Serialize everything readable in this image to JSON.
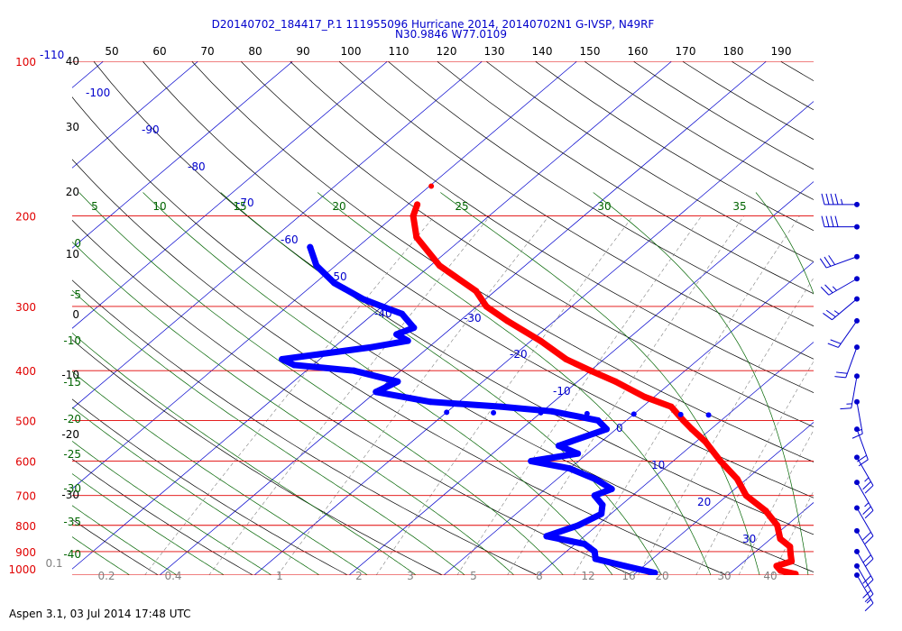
{
  "header": {
    "line1": "D20140702_184417_P.1 111955096 Hurricane 2014, 20140702N1 G-IVSP, N49RF",
    "line2": "N30.9846 W77.0109"
  },
  "footer": "Aspen 3.1, 03 Jul 2014  17:48 UTC",
  "colors": {
    "isobar": "#e00000",
    "pressure_label": "#e00000",
    "isotherm": "#0000cc",
    "temp_label": "#0000cc",
    "dry_adiabat": "#000000",
    "moist_adiabat": "#006400",
    "mixing_ratio": "#808080",
    "temp_profile": "#ff0000",
    "dewpoint_profile": "#0000ff",
    "wind_barb": "#0000cc"
  },
  "chart_data": {
    "type": "skew-t",
    "top_scale_values": [
      "50",
      "60",
      "70",
      "80",
      "90",
      "100",
      "110",
      "120",
      "130",
      "140",
      "150",
      "160",
      "170",
      "180",
      "190"
    ],
    "pressure_levels": [
      "100",
      "200",
      "300",
      "400",
      "500",
      "600",
      "700",
      "800",
      "900",
      "1000"
    ],
    "pressure_ylim_hPa": [
      1000,
      100
    ],
    "isotherm_labels": [
      "-110",
      "-100",
      "-90",
      "-80",
      "-70",
      "-60",
      "-50",
      "-40",
      "-30",
      "-20",
      "-10",
      "0",
      "10",
      "20",
      "30"
    ],
    "dry_adiabat_labels": [
      "40",
      "30",
      "20",
      "10",
      "0",
      "-10",
      "-20",
      "-30"
    ],
    "moist_adiabat_labels": [
      {
        "text": "5",
        "pos": "top"
      },
      {
        "text": "10",
        "pos": "top"
      },
      {
        "text": "15",
        "pos": "top"
      },
      {
        "text": "20",
        "pos": "top"
      },
      {
        "text": "25",
        "pos": "top"
      },
      {
        "text": "30",
        "pos": "top"
      },
      {
        "text": "35",
        "pos": "top"
      },
      {
        "text": "0",
        "pos": "left"
      },
      {
        "text": "-5",
        "pos": "left"
      },
      {
        "text": "-10",
        "pos": "left"
      },
      {
        "text": "-15",
        "pos": "left"
      },
      {
        "text": "-20",
        "pos": "left"
      },
      {
        "text": "-25",
        "pos": "left"
      },
      {
        "text": "-30",
        "pos": "left"
      },
      {
        "text": "-35",
        "pos": "left"
      },
      {
        "text": "-40",
        "pos": "left"
      }
    ],
    "mixing_ratio_labels": [
      "0.1",
      "0.2",
      "0.4",
      "1",
      "2",
      "3",
      "5",
      "8",
      "12",
      "16",
      "20",
      "30",
      "40"
    ],
    "temperature_profile_C": [
      [
        190,
        -59
      ],
      [
        200,
        -58
      ],
      [
        220,
        -55
      ],
      [
        250,
        -49
      ],
      [
        280,
        -42
      ],
      [
        300,
        -39
      ],
      [
        320,
        -35
      ],
      [
        350,
        -29
      ],
      [
        380,
        -24
      ],
      [
        400,
        -20
      ],
      [
        420,
        -16
      ],
      [
        450,
        -11
      ],
      [
        470,
        -7
      ],
      [
        500,
        -4
      ],
      [
        520,
        -2
      ],
      [
        550,
        1
      ],
      [
        600,
        5
      ],
      [
        650,
        9
      ],
      [
        700,
        12
      ],
      [
        750,
        16
      ],
      [
        800,
        19
      ],
      [
        850,
        21
      ],
      [
        880,
        23
      ],
      [
        910,
        24
      ],
      [
        940,
        25
      ],
      [
        960,
        24
      ],
      [
        980,
        25
      ],
      [
        995,
        27
      ]
    ],
    "dewpoint_profile_C": [
      [
        230,
        -65
      ],
      [
        250,
        -62
      ],
      [
        270,
        -58
      ],
      [
        290,
        -53
      ],
      [
        300,
        -50
      ],
      [
        310,
        -47
      ],
      [
        330,
        -44
      ],
      [
        340,
        -45
      ],
      [
        350,
        -43
      ],
      [
        360,
        -46
      ],
      [
        380,
        -54
      ],
      [
        390,
        -52
      ],
      [
        400,
        -45
      ],
      [
        420,
        -39
      ],
      [
        440,
        -40
      ],
      [
        460,
        -33
      ],
      [
        470,
        -25
      ],
      [
        480,
        -19
      ],
      [
        500,
        -13
      ],
      [
        520,
        -11
      ],
      [
        560,
        -14
      ],
      [
        580,
        -11
      ],
      [
        600,
        -15
      ],
      [
        620,
        -10
      ],
      [
        650,
        -6
      ],
      [
        680,
        -3
      ],
      [
        700,
        -4
      ],
      [
        730,
        -2
      ],
      [
        760,
        -1
      ],
      [
        800,
        -2
      ],
      [
        840,
        -4
      ],
      [
        870,
        1
      ],
      [
        900,
        3
      ],
      [
        930,
        4
      ],
      [
        960,
        8
      ],
      [
        990,
        12
      ],
      [
        1000,
        12
      ]
    ],
    "isolated_points": [
      {
        "p": 175,
        "t": -56
      }
    ],
    "wind_barbs": [
      {
        "p": 190,
        "dir": 270,
        "kt": 45
      },
      {
        "p": 210,
        "dir": 270,
        "kt": 40
      },
      {
        "p": 240,
        "dir": 250,
        "kt": 30
      },
      {
        "p": 265,
        "dir": 240,
        "kt": 25
      },
      {
        "p": 290,
        "dir": 230,
        "kt": 25
      },
      {
        "p": 320,
        "dir": 215,
        "kt": 20
      },
      {
        "p": 360,
        "dir": 200,
        "kt": 20
      },
      {
        "p": 410,
        "dir": 190,
        "kt": 15
      },
      {
        "p": 460,
        "dir": 170,
        "kt": 15
      },
      {
        "p": 520,
        "dir": 160,
        "kt": 20
      },
      {
        "p": 590,
        "dir": 150,
        "kt": 25
      },
      {
        "p": 660,
        "dir": 150,
        "kt": 25
      },
      {
        "p": 740,
        "dir": 150,
        "kt": 20
      },
      {
        "p": 820,
        "dir": 150,
        "kt": 20
      },
      {
        "p": 900,
        "dir": 150,
        "kt": 20
      },
      {
        "p": 960,
        "dir": 150,
        "kt": 20
      },
      {
        "p": 1000,
        "dir": 150,
        "kt": 15
      }
    ]
  }
}
